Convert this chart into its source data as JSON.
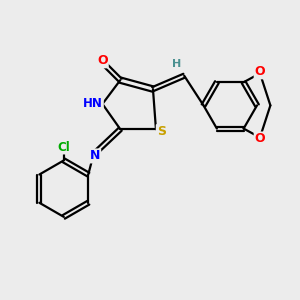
{
  "bg_color": "#ececec",
  "atom_colors": {
    "O": "#ff0000",
    "N": "#0000ff",
    "S": "#c8a000",
    "Cl": "#00aa00",
    "C": "#000000",
    "H": "#4a9090"
  },
  "bond_color": "#000000",
  "figsize": [
    3.0,
    3.0
  ],
  "dpi": 100
}
